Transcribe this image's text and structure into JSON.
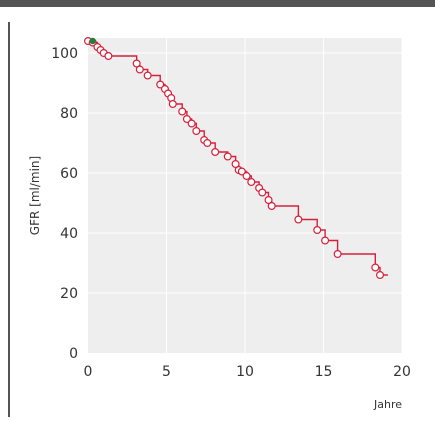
{
  "chart_data": {
    "type": "line",
    "title": "",
    "xlabel": "Jahre",
    "ylabel": "GFR [ml/min]",
    "xlim": [
      0,
      20
    ],
    "ylim": [
      0,
      105
    ],
    "xticks": [
      "0",
      "5",
      "10",
      "15",
      "20"
    ],
    "yticks": [
      "0",
      "20",
      "40",
      "60",
      "80",
      "100"
    ],
    "xtick_values": [
      0,
      5,
      10,
      15,
      20
    ],
    "ytick_values": [
      0,
      20,
      40,
      60,
      80,
      100
    ],
    "grid": true,
    "colors": {
      "background": "#eeeeee",
      "grid": "#ffffff",
      "line": "#d6203a",
      "censor_marker_fill": "#ffffff",
      "start_marker": "#2a7a3a",
      "text": "#333333"
    },
    "series": [
      {
        "step_points": [
          [
            0.0,
            104
          ],
          [
            0.3,
            104
          ],
          [
            0.3,
            103.5
          ],
          [
            0.6,
            103.5
          ],
          [
            0.6,
            102
          ],
          [
            0.8,
            102
          ],
          [
            0.8,
            101
          ],
          [
            1.0,
            101
          ],
          [
            1.0,
            100
          ],
          [
            1.3,
            100
          ],
          [
            1.3,
            99
          ],
          [
            3.1,
            99
          ],
          [
            3.1,
            96.5
          ],
          [
            3.3,
            96.5
          ],
          [
            3.3,
            94.5
          ],
          [
            3.8,
            94.5
          ],
          [
            3.8,
            92.5
          ],
          [
            4.6,
            92.5
          ],
          [
            4.6,
            89.5
          ],
          [
            4.9,
            89.5
          ],
          [
            4.9,
            88
          ],
          [
            5.1,
            88
          ],
          [
            5.1,
            86.5
          ],
          [
            5.3,
            86.5
          ],
          [
            5.3,
            85
          ],
          [
            5.4,
            85
          ],
          [
            5.4,
            83
          ],
          [
            6.0,
            83
          ],
          [
            6.0,
            80.5
          ],
          [
            6.3,
            80.5
          ],
          [
            6.3,
            78
          ],
          [
            6.6,
            78
          ],
          [
            6.6,
            76.5
          ],
          [
            6.9,
            76.5
          ],
          [
            6.9,
            74
          ],
          [
            7.4,
            74
          ],
          [
            7.4,
            71
          ],
          [
            7.6,
            71
          ],
          [
            7.6,
            70
          ],
          [
            8.1,
            70
          ],
          [
            8.1,
            67
          ],
          [
            8.9,
            67
          ],
          [
            8.9,
            65.5
          ],
          [
            9.4,
            65.5
          ],
          [
            9.4,
            63
          ],
          [
            9.6,
            63
          ],
          [
            9.6,
            61
          ],
          [
            9.8,
            61
          ],
          [
            9.8,
            60.5
          ],
          [
            10.1,
            60.5
          ],
          [
            10.1,
            59
          ],
          [
            10.4,
            59
          ],
          [
            10.4,
            57
          ],
          [
            10.9,
            57
          ],
          [
            10.9,
            55
          ],
          [
            11.1,
            55
          ],
          [
            11.1,
            53.5
          ],
          [
            11.5,
            53.5
          ],
          [
            11.5,
            51
          ],
          [
            11.7,
            51
          ],
          [
            11.7,
            49
          ],
          [
            13.4,
            49
          ],
          [
            13.4,
            44.5
          ],
          [
            14.6,
            44.5
          ],
          [
            14.6,
            41
          ],
          [
            15.1,
            41
          ],
          [
            15.1,
            37.5
          ],
          [
            15.9,
            37.5
          ],
          [
            15.9,
            33
          ],
          [
            18.3,
            33
          ],
          [
            18.3,
            28.5
          ],
          [
            18.6,
            28.5
          ],
          [
            18.6,
            26
          ],
          [
            19.1,
            26
          ]
        ],
        "censor_markers": [
          [
            0.0,
            104
          ],
          [
            0.3,
            103.5
          ],
          [
            0.6,
            102
          ],
          [
            0.8,
            101
          ],
          [
            1.0,
            100
          ],
          [
            1.3,
            99
          ],
          [
            3.1,
            96.5
          ],
          [
            3.3,
            94.5
          ],
          [
            3.8,
            92.5
          ],
          [
            4.6,
            89.5
          ],
          [
            4.9,
            88
          ],
          [
            5.1,
            86.5
          ],
          [
            5.3,
            85
          ],
          [
            5.4,
            83
          ],
          [
            6.0,
            80.5
          ],
          [
            6.3,
            78
          ],
          [
            6.6,
            76.5
          ],
          [
            6.9,
            74
          ],
          [
            7.4,
            71
          ],
          [
            7.6,
            70
          ],
          [
            8.1,
            67
          ],
          [
            8.9,
            65.5
          ],
          [
            9.4,
            63
          ],
          [
            9.6,
            61
          ],
          [
            9.8,
            60.5
          ],
          [
            10.1,
            59
          ],
          [
            10.4,
            57
          ],
          [
            10.9,
            55
          ],
          [
            11.1,
            53.5
          ],
          [
            11.5,
            51
          ],
          [
            11.7,
            49
          ],
          [
            13.4,
            44.5
          ],
          [
            14.6,
            41
          ],
          [
            15.1,
            37.5
          ],
          [
            15.9,
            33
          ],
          [
            18.3,
            28.5
          ],
          [
            18.6,
            26
          ]
        ],
        "start_marker": [
          0.3,
          104
        ]
      }
    ]
  }
}
